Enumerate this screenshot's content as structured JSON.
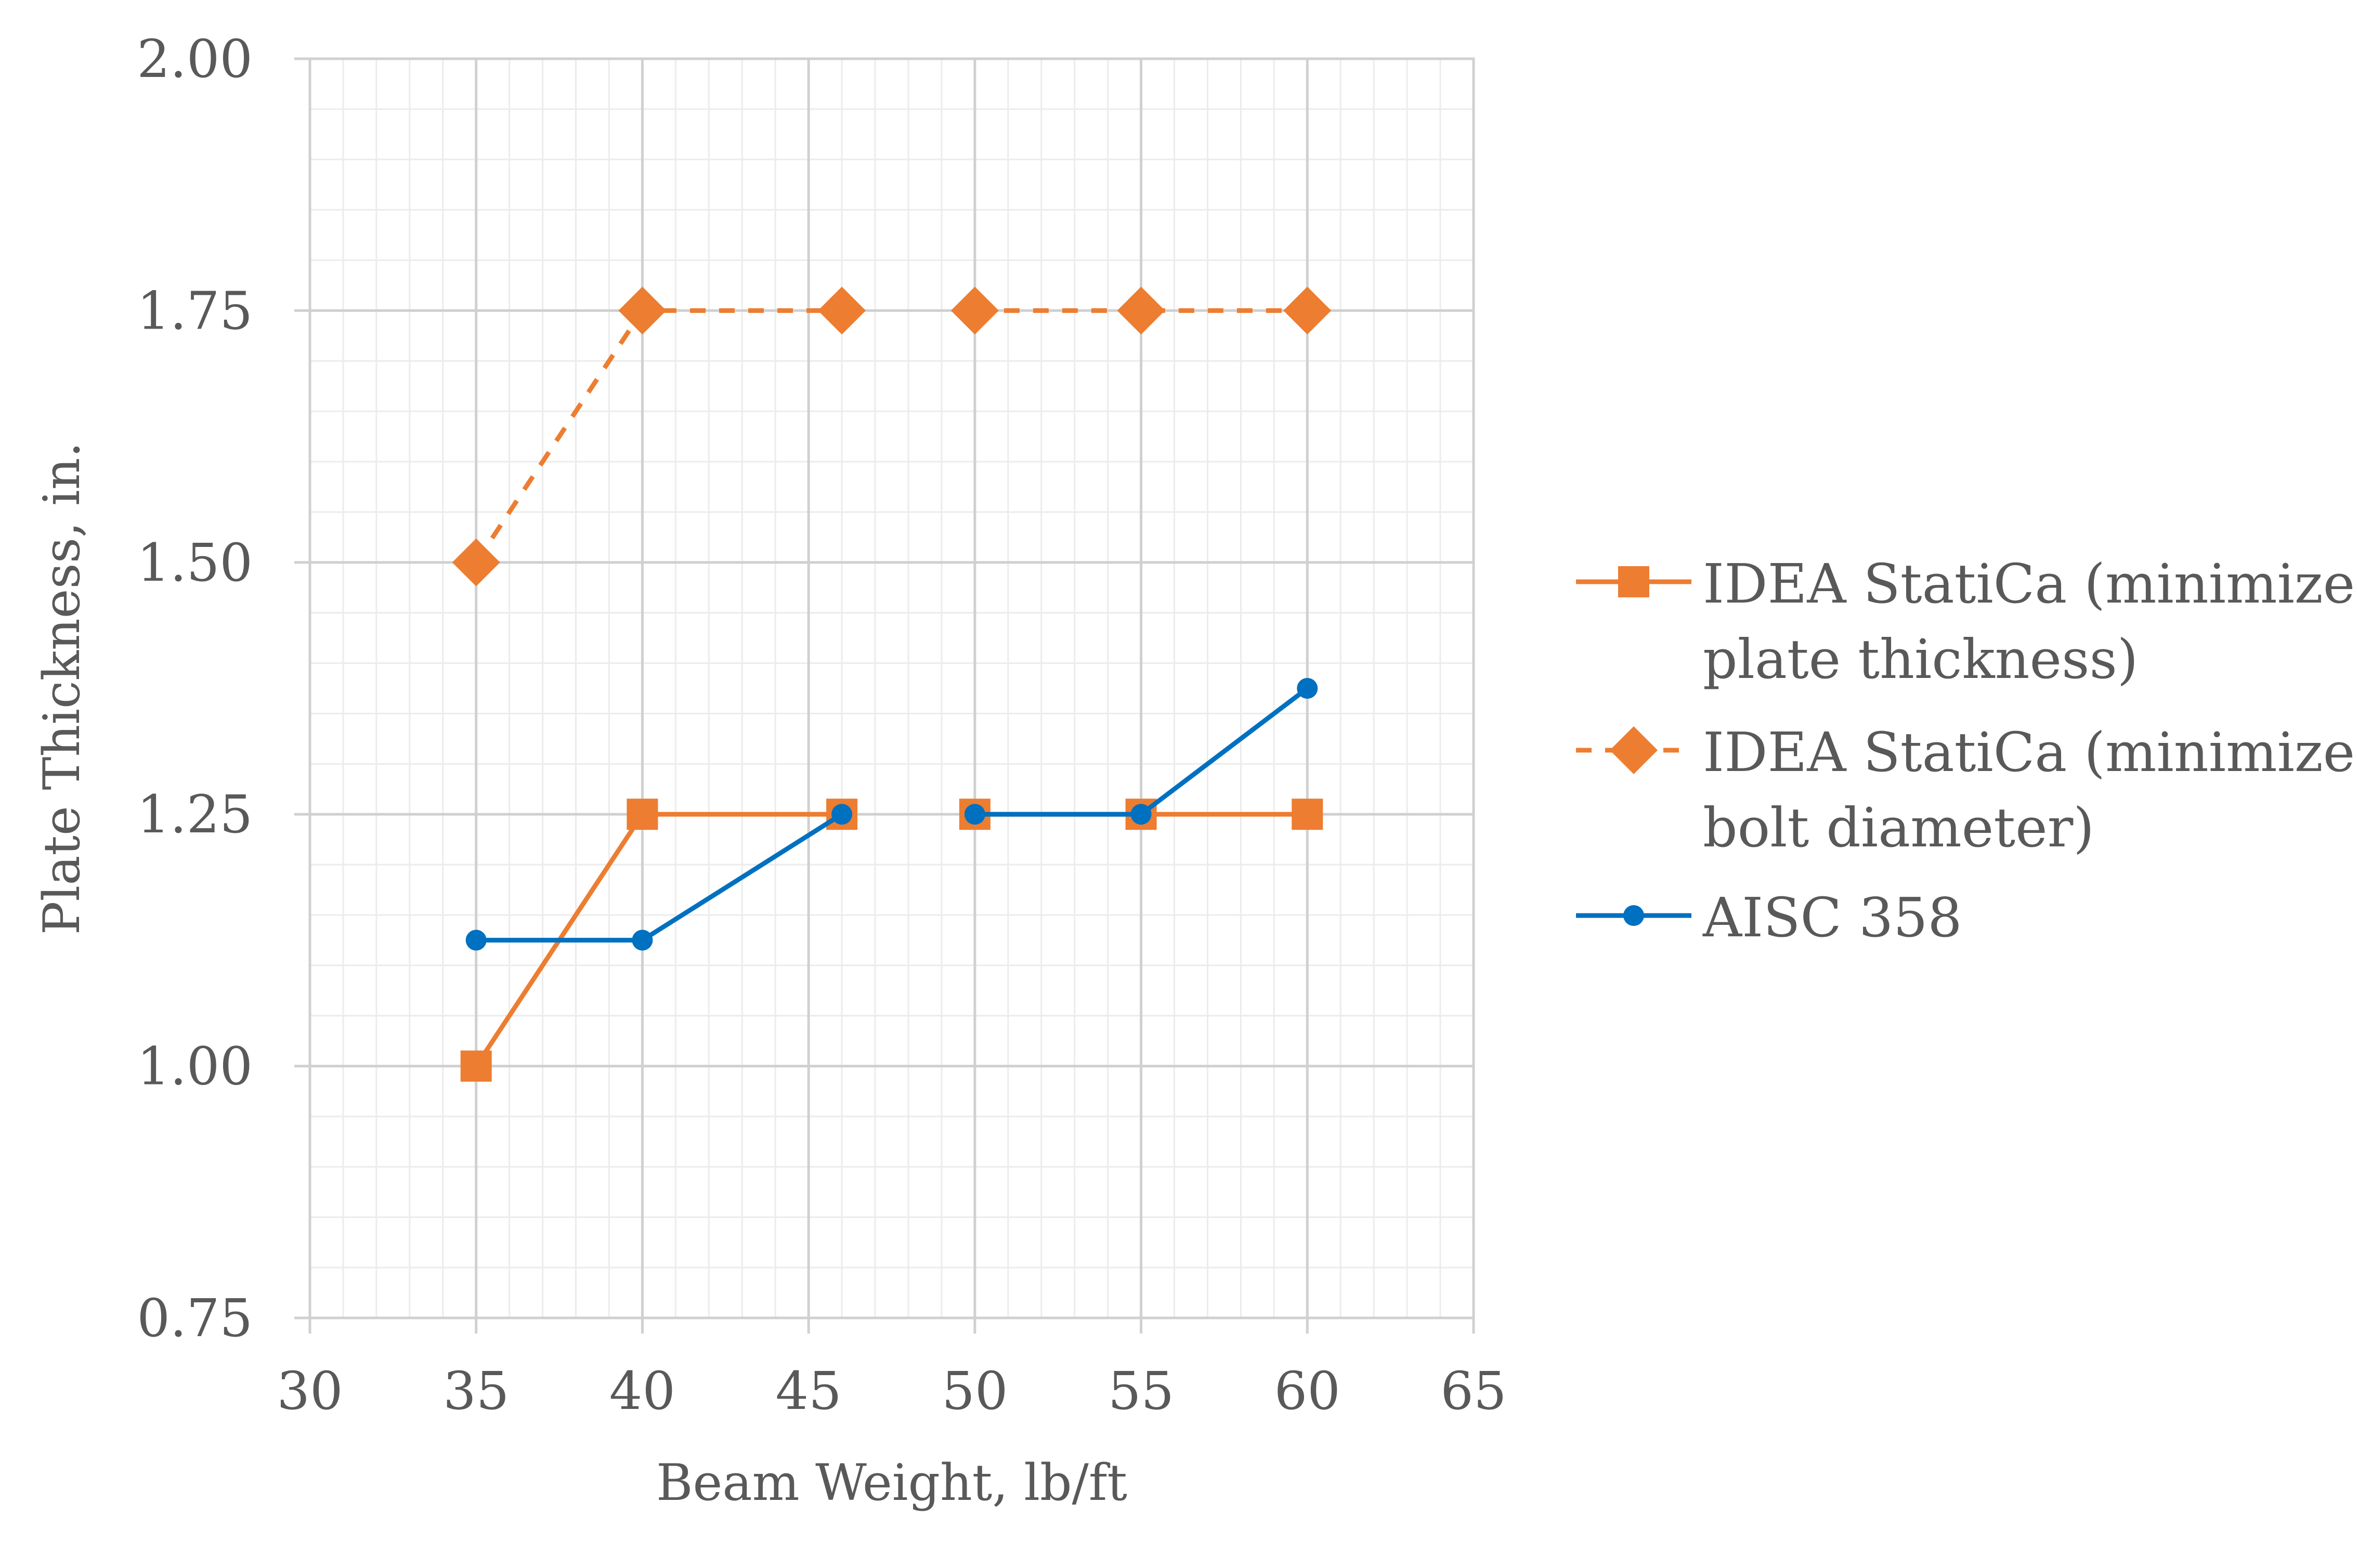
{
  "chart_data": {
    "type": "line",
    "title": "",
    "xlabel": "Beam Weight, lb/ft",
    "ylabel": "Plate Thickness, in.",
    "xlim": [
      30,
      65
    ],
    "ylim": [
      0.75,
      2.0
    ],
    "x_ticks": [
      30,
      35,
      40,
      45,
      50,
      55,
      60,
      65
    ],
    "x_tick_labels": [
      "30",
      "35",
      "40",
      "45",
      "50",
      "55",
      "60",
      "65"
    ],
    "y_ticks": [
      0.75,
      1.0,
      1.25,
      1.5,
      1.75,
      2.0
    ],
    "y_tick_labels": [
      "0.75",
      "1.00",
      "1.25",
      "1.50",
      "1.75",
      "2.00"
    ],
    "grid": true,
    "legend_position": "right",
    "series": [
      {
        "name": "IDEA StatiCa (minimize plate thickness)",
        "legend_lines": [
          "IDEA StatiCa (minimize",
          "plate thickness)"
        ],
        "color": "#ED7D31",
        "marker": "square",
        "line_style": "solid",
        "segments": [
          [
            {
              "x": 35,
              "y": 1.0
            },
            {
              "x": 40,
              "y": 1.25
            },
            {
              "x": 46,
              "y": 1.25
            }
          ],
          [
            {
              "x": 50,
              "y": 1.25
            },
            {
              "x": 55,
              "y": 1.25
            },
            {
              "x": 60,
              "y": 1.25
            }
          ]
        ]
      },
      {
        "name": "IDEA StatiCa (minimize bolt diameter)",
        "legend_lines": [
          "IDEA StatiCa (minimize",
          "bolt diameter)"
        ],
        "color": "#ED7D31",
        "marker": "diamond",
        "line_style": "dashed",
        "segments": [
          [
            {
              "x": 35,
              "y": 1.5
            },
            {
              "x": 40,
              "y": 1.75
            },
            {
              "x": 46,
              "y": 1.75
            }
          ],
          [
            {
              "x": 50,
              "y": 1.75
            },
            {
              "x": 55,
              "y": 1.75
            },
            {
              "x": 60,
              "y": 1.75
            }
          ]
        ]
      },
      {
        "name": "AISC 358",
        "legend_lines": [
          "AISC 358"
        ],
        "color": "#0070C0",
        "marker": "circle",
        "line_style": "solid",
        "segments": [
          [
            {
              "x": 35,
              "y": 1.125
            },
            {
              "x": 40,
              "y": 1.125
            },
            {
              "x": 46,
              "y": 1.25
            }
          ],
          [
            {
              "x": 50,
              "y": 1.25
            },
            {
              "x": 55,
              "y": 1.25
            },
            {
              "x": 60,
              "y": 1.375
            }
          ]
        ]
      }
    ]
  }
}
